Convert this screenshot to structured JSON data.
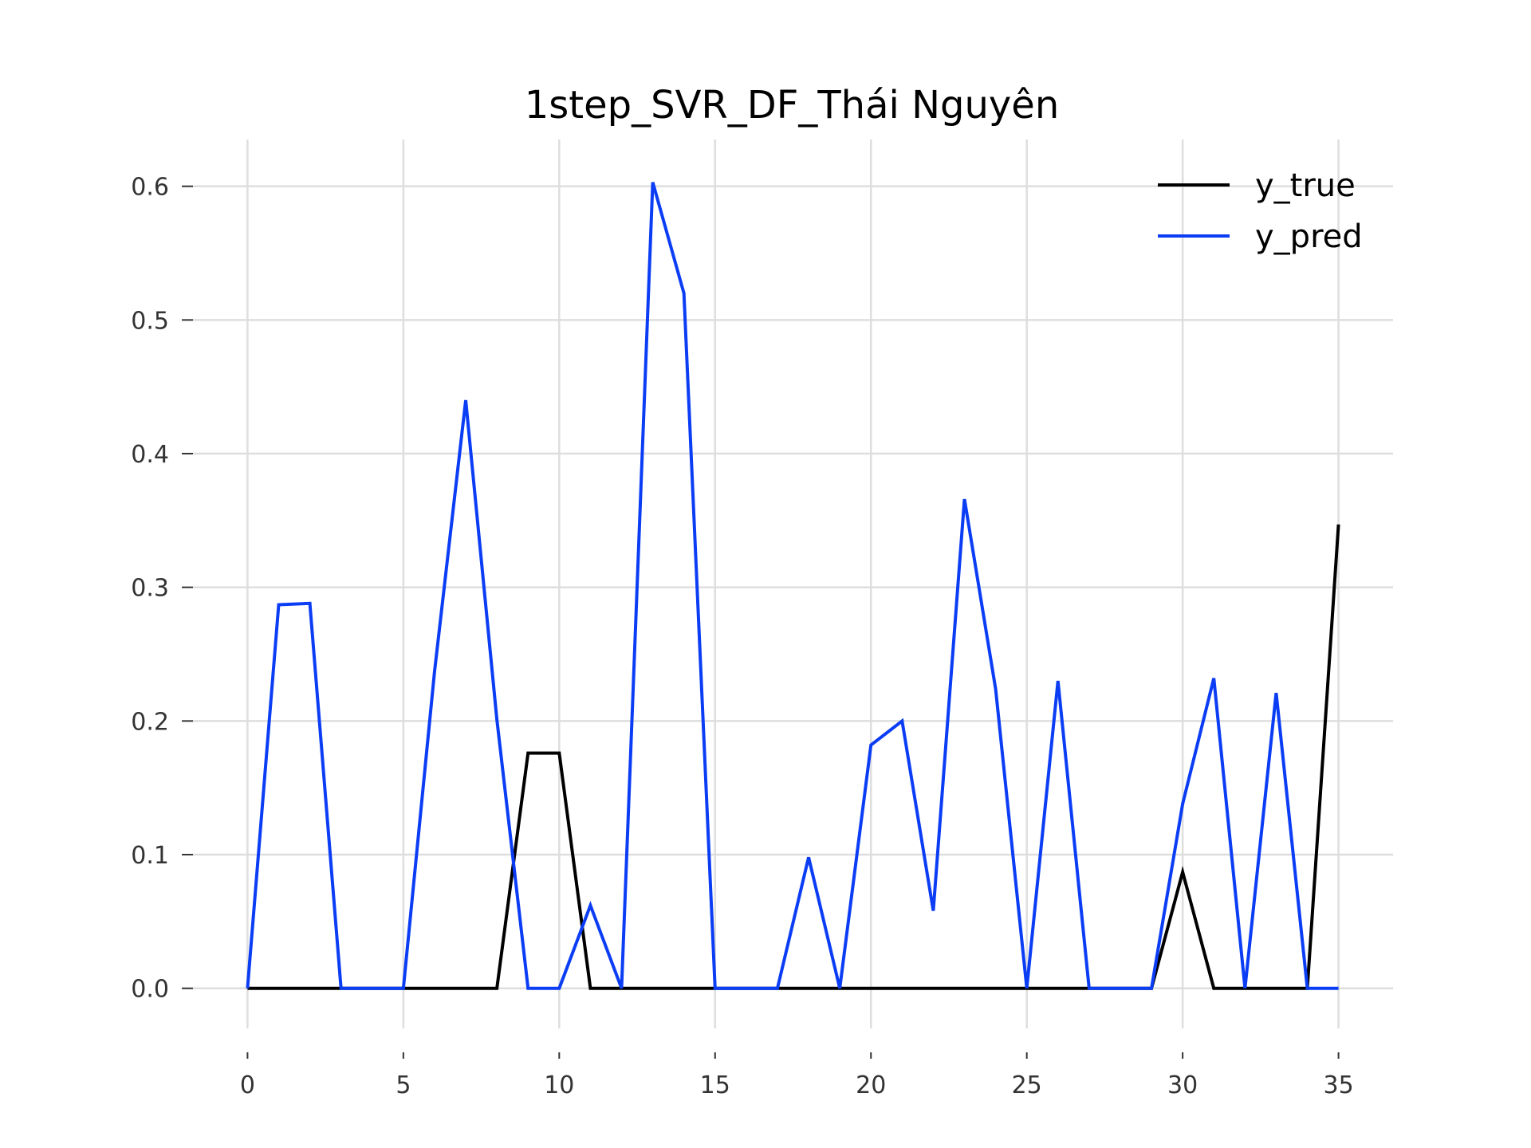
{
  "chart_data": {
    "type": "line",
    "title": "1step_SVR_DF_Thái Nguyên",
    "xlabel": "",
    "ylabel": "",
    "xlim": [
      -1.75,
      36.75
    ],
    "ylim": [
      -0.03,
      0.635
    ],
    "xticks": [
      0,
      5,
      10,
      15,
      20,
      25,
      30,
      35
    ],
    "xtick_labels": [
      "0",
      "5",
      "10",
      "15",
      "20",
      "25",
      "30",
      "35"
    ],
    "yticks": [
      0.0,
      0.1,
      0.2,
      0.3,
      0.4,
      0.5,
      0.6
    ],
    "ytick_labels": [
      "0.0",
      "0.1",
      "0.2",
      "0.3",
      "0.4",
      "0.5",
      "0.6"
    ],
    "grid": true,
    "legend_position": "top-right",
    "x": [
      0,
      1,
      2,
      3,
      4,
      5,
      6,
      7,
      8,
      9,
      10,
      11,
      12,
      13,
      14,
      15,
      16,
      17,
      18,
      19,
      20,
      21,
      22,
      23,
      24,
      25,
      26,
      27,
      28,
      29,
      30,
      31,
      32,
      33,
      34,
      35
    ],
    "series": [
      {
        "name": "y_true",
        "color": "#000000",
        "values": [
          0,
          0,
          0,
          0,
          0,
          0,
          0,
          0,
          0,
          0.176,
          0.176,
          0,
          0,
          0,
          0,
          0,
          0,
          0,
          0,
          0,
          0,
          0,
          0,
          0,
          0,
          0,
          0,
          0,
          0,
          0,
          0.087,
          0,
          0,
          0,
          0,
          0.347
        ]
      },
      {
        "name": "y_pred",
        "color": "#0b3df5",
        "values": [
          0,
          0.287,
          0.288,
          0,
          0,
          0,
          0.237,
          0.44,
          0.201,
          0,
          0,
          0.062,
          0,
          0.603,
          0.52,
          0,
          0,
          0,
          0.098,
          0,
          0.182,
          0.2,
          0.058,
          0.366,
          0.224,
          0,
          0.23,
          0,
          0,
          0,
          0.138,
          0.232,
          0,
          0.221,
          0,
          0
        ]
      }
    ]
  }
}
